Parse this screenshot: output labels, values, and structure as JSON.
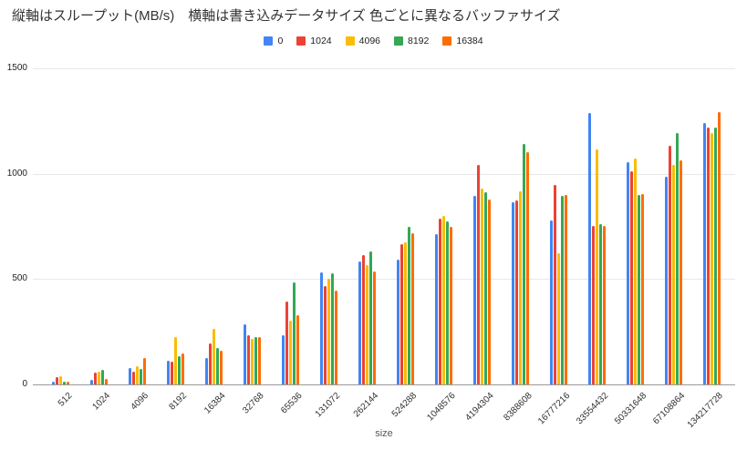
{
  "title": "縦軸はスループット(MB/s)　横軸は書き込みデータサイズ 色ごとに異なるバッファサイズ",
  "chart_data": {
    "type": "bar",
    "title": "縦軸はスループット(MB/s)　横軸は書き込みデータサイズ 色ごとに異なるバッファサイズ",
    "xlabel": "size",
    "ylabel": "",
    "ylim": [
      0,
      1500
    ],
    "yticks": [
      0,
      500,
      1000,
      1500
    ],
    "grid": true,
    "legend_position": "top",
    "categories": [
      "512",
      "1024",
      "4096",
      "8192",
      "16384",
      "32768",
      "65536",
      "131072",
      "262144",
      "524288",
      "1048576",
      "4194304",
      "8388608",
      "16777216",
      "33554432",
      "50331648",
      "67108864",
      "134217728"
    ],
    "series": [
      {
        "name": "0",
        "color": "#4285F4",
        "values": [
          15,
          23,
          78,
          114,
          124,
          286,
          233,
          533,
          584,
          595,
          715,
          897,
          865,
          779,
          1291,
          1058,
          986,
          1243
        ]
      },
      {
        "name": "1024",
        "color": "#EA4335",
        "values": [
          35,
          56,
          62,
          107,
          194,
          234,
          392,
          468,
          616,
          668,
          790,
          1045,
          875,
          948,
          754,
          1012,
          1133,
          1220
        ]
      },
      {
        "name": "4096",
        "color": "#FBBC04",
        "values": [
          38,
          61,
          85,
          227,
          262,
          215,
          305,
          500,
          565,
          675,
          803,
          930,
          918,
          624,
          1118,
          1072,
          1043,
          1194
        ]
      },
      {
        "name": "8192",
        "color": "#34A853",
        "values": [
          12,
          71,
          72,
          136,
          172,
          225,
          483,
          529,
          634,
          749,
          776,
          915,
          1144,
          894,
          764,
          902,
          1194,
          1220
        ]
      },
      {
        "name": "16384",
        "color": "#FF6D01",
        "values": [
          14,
          27,
          124,
          147,
          160,
          223,
          331,
          445,
          536,
          719,
          747,
          880,
          1105,
          902,
          753,
          906,
          1064,
          1295
        ]
      }
    ]
  }
}
